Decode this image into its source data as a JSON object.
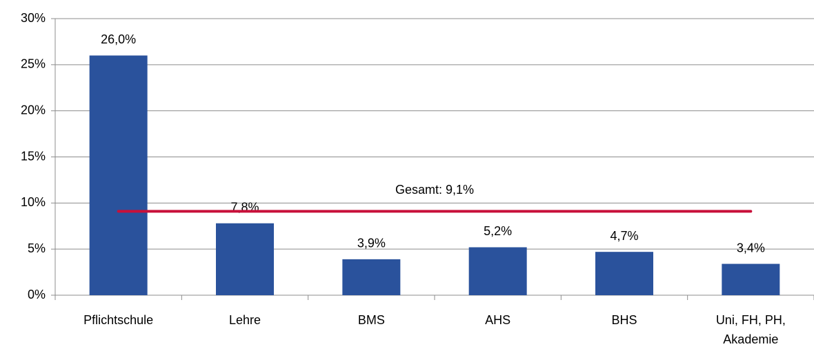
{
  "chart_data": {
    "type": "bar",
    "categories": [
      "Pflichtschule",
      "Lehre",
      "BMS",
      "AHS",
      "BHS",
      "Uni, FH, PH, Akademie"
    ],
    "values": [
      26.0,
      7.8,
      3.9,
      5.2,
      4.7,
      3.4
    ],
    "value_labels": [
      "26,0%",
      "7,8%",
      "3,9%",
      "5,2%",
      "4,7%",
      "3,4%"
    ],
    "color": "#2a529c",
    "ylim": [
      0,
      30
    ],
    "yticks": [
      {
        "value": 0,
        "label": "0%"
      },
      {
        "value": 5,
        "label": "5%"
      },
      {
        "value": 10,
        "label": "10%"
      },
      {
        "value": 15,
        "label": "15%"
      },
      {
        "value": 20,
        "label": "20%"
      },
      {
        "value": 25,
        "label": "25%"
      },
      {
        "value": 30,
        "label": "30%"
      }
    ],
    "grid": true,
    "reference_line": {
      "value": 9.1,
      "label": "Gesamt: 9,1%",
      "color": "#c8103a"
    }
  }
}
